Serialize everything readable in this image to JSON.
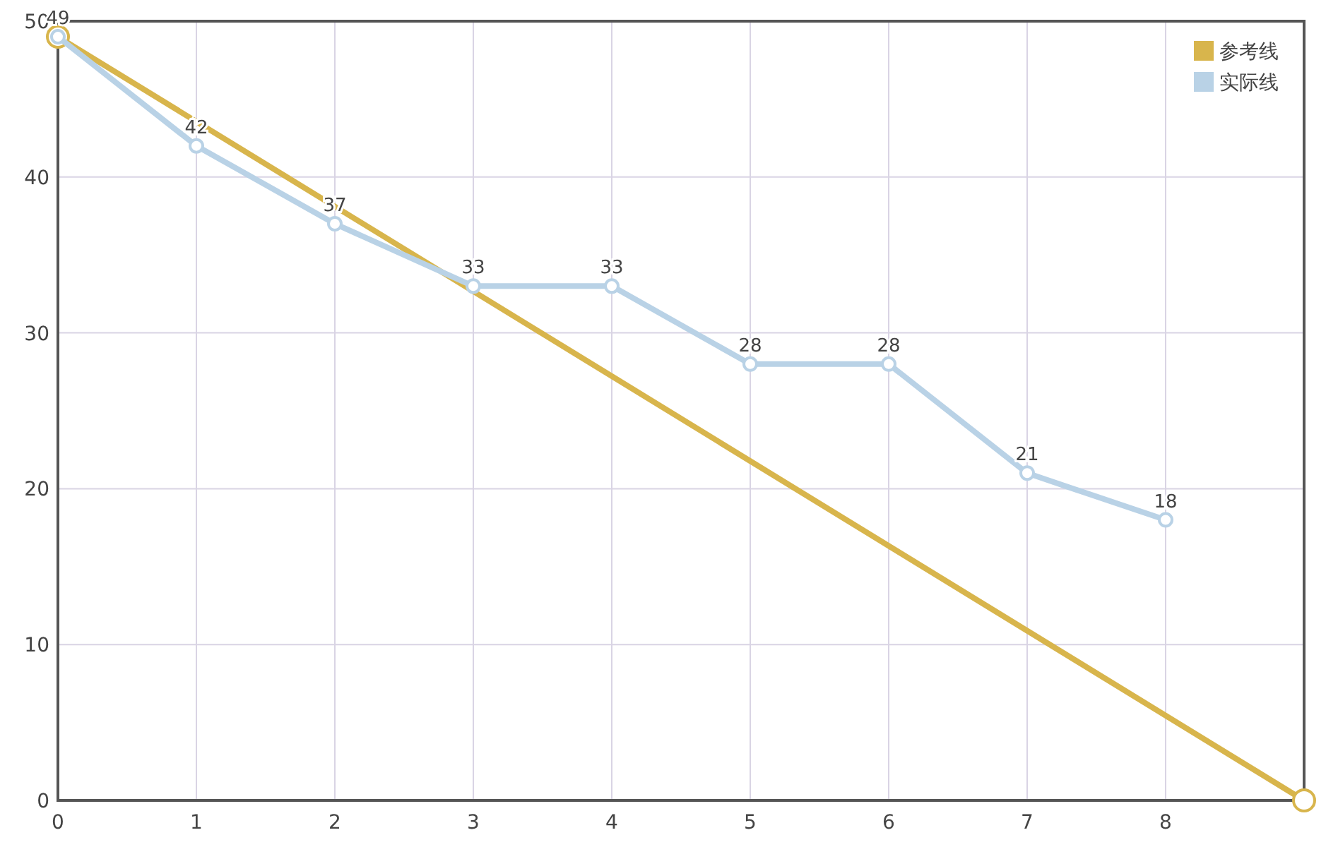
{
  "chart_data": {
    "type": "line",
    "xlim": [
      0,
      9
    ],
    "xticks": [
      0,
      1,
      2,
      3,
      4,
      5,
      6,
      7,
      8
    ],
    "ylim": [
      0,
      50
    ],
    "yticks": [
      0,
      10,
      20,
      30,
      40,
      50
    ],
    "grid": true,
    "legend": "top right",
    "marker": "circle",
    "line_style": "solid",
    "series": [
      {
        "name": "参考线",
        "color": "#d8b54c",
        "x": [
          0,
          9
        ],
        "values": [
          49,
          0
        ]
      },
      {
        "name": "实际线",
        "color": "#b9d2e6",
        "x": [
          0,
          1,
          2,
          3,
          4,
          5,
          6,
          7,
          8
        ],
        "values": [
          49,
          42,
          37,
          33,
          33,
          28,
          28,
          21,
          18
        ],
        "value_labels": [
          "49",
          "42",
          "37",
          "33",
          "33",
          "28",
          "28",
          "21",
          "18"
        ]
      }
    ]
  }
}
